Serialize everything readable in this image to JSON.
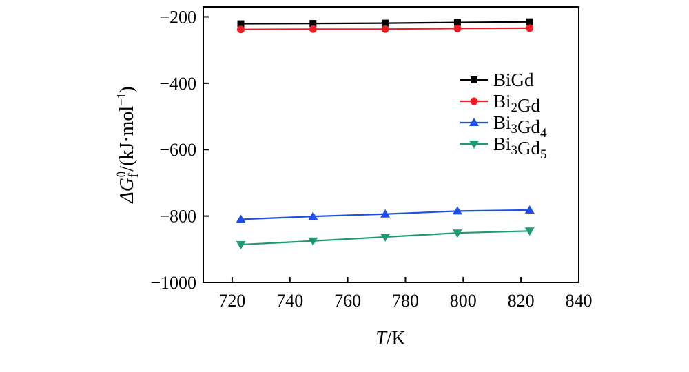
{
  "chart_data": {
    "type": "line",
    "title": "",
    "xlabel_italic": "T",
    "xlabel_rest": "/K",
    "ylabel_main": "ΔG",
    "ylabel_sub": "f",
    "ylabel_sup": "θ",
    "ylabel_rest": "/(kJ·mol",
    "ylabel_exp": "−1",
    "ylabel_close": ")",
    "xlim": [
      710,
      840
    ],
    "ylim": [
      -1000,
      -170
    ],
    "xticks": [
      720,
      740,
      760,
      780,
      800,
      820,
      840
    ],
    "xtick_labels": [
      "720",
      "740",
      "760",
      "780",
      "800",
      "820",
      "840"
    ],
    "yticks": [
      -1000,
      -800,
      -600,
      -400,
      -200
    ],
    "ytick_labels": [
      "−1000",
      "−800",
      "−600",
      "−400",
      "−200"
    ],
    "x": [
      723,
      748,
      773,
      798,
      823
    ],
    "series": [
      {
        "name": "BiGd",
        "name_parts": [
          [
            "Bi",
            ""
          ],
          [
            "Gd",
            ""
          ]
        ],
        "color": "#000000",
        "marker": "square",
        "values": [
          -221,
          -220,
          -219,
          -217,
          -215
        ]
      },
      {
        "name": "Bi2Gd",
        "name_parts": [
          [
            "Bi",
            "2"
          ],
          [
            "Gd",
            ""
          ]
        ],
        "color": "#ee1c25",
        "marker": "circle",
        "values": [
          -238,
          -237,
          -237,
          -235,
          -234
        ]
      },
      {
        "name": "Bi3Gd4",
        "name_parts": [
          [
            "Bi",
            "3"
          ],
          [
            "Gd",
            "4"
          ]
        ],
        "color": "#1f4ee8",
        "marker": "triangle-up",
        "values": [
          -810,
          -801,
          -794,
          -785,
          -782
        ]
      },
      {
        "name": "Bi3Gd5",
        "name_parts": [
          [
            "Bi",
            "3"
          ],
          [
            "Gd",
            "5"
          ]
        ],
        "color": "#1f9a6c",
        "marker": "triangle-down",
        "values": [
          -886,
          -875,
          -863,
          -851,
          -845
        ]
      }
    ],
    "legend_position": "top-right, inside plot"
  }
}
